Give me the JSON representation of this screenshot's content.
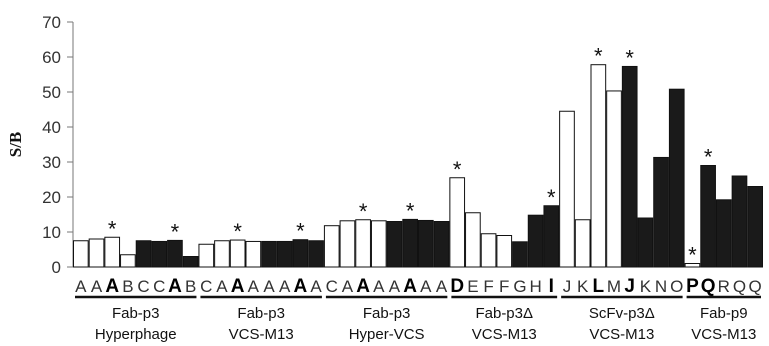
{
  "chart_data": {
    "type": "bar",
    "ylabel": "S/B",
    "ylim": [
      0,
      70
    ],
    "yticks": [
      0,
      10,
      20,
      30,
      40,
      50,
      60,
      70
    ],
    "grid": false,
    "fill_colors": {
      "white": "#ffffff",
      "black": "#1a1a1a"
    },
    "bars": [
      {
        "letter": "A",
        "value": 7.5,
        "fill": "white",
        "bold": false,
        "star": false
      },
      {
        "letter": "A",
        "value": 8.0,
        "fill": "white",
        "bold": false,
        "star": false
      },
      {
        "letter": "A",
        "value": 8.5,
        "fill": "white",
        "bold": true,
        "star": true
      },
      {
        "letter": "B",
        "value": 3.5,
        "fill": "white",
        "bold": false,
        "star": false
      },
      {
        "letter": "C",
        "value": 7.5,
        "fill": "black",
        "bold": false,
        "star": false
      },
      {
        "letter": "C",
        "value": 7.3,
        "fill": "black",
        "bold": false,
        "star": false
      },
      {
        "letter": "A",
        "value": 7.6,
        "fill": "black",
        "bold": true,
        "star": true
      },
      {
        "letter": "B",
        "value": 3.0,
        "fill": "black",
        "bold": false,
        "star": false
      },
      {
        "letter": "C",
        "value": 6.5,
        "fill": "white",
        "bold": false,
        "star": false
      },
      {
        "letter": "A",
        "value": 7.5,
        "fill": "white",
        "bold": false,
        "star": false
      },
      {
        "letter": "A",
        "value": 7.7,
        "fill": "white",
        "bold": true,
        "star": true
      },
      {
        "letter": "A",
        "value": 7.3,
        "fill": "white",
        "bold": false,
        "star": false
      },
      {
        "letter": "A",
        "value": 7.3,
        "fill": "black",
        "bold": false,
        "star": false
      },
      {
        "letter": "A",
        "value": 7.3,
        "fill": "black",
        "bold": false,
        "star": false
      },
      {
        "letter": "A",
        "value": 7.8,
        "fill": "black",
        "bold": true,
        "star": true
      },
      {
        "letter": "A",
        "value": 7.5,
        "fill": "black",
        "bold": false,
        "star": false
      },
      {
        "letter": "C",
        "value": 11.8,
        "fill": "white",
        "bold": false,
        "star": false
      },
      {
        "letter": "A",
        "value": 13.2,
        "fill": "white",
        "bold": false,
        "star": false
      },
      {
        "letter": "A",
        "value": 13.5,
        "fill": "white",
        "bold": true,
        "star": true
      },
      {
        "letter": "A",
        "value": 13.2,
        "fill": "white",
        "bold": false,
        "star": false
      },
      {
        "letter": "A",
        "value": 13.0,
        "fill": "black",
        "bold": false,
        "star": false
      },
      {
        "letter": "A",
        "value": 13.6,
        "fill": "black",
        "bold": true,
        "star": true
      },
      {
        "letter": "A",
        "value": 13.3,
        "fill": "black",
        "bold": false,
        "star": false
      },
      {
        "letter": "A",
        "value": 13.0,
        "fill": "black",
        "bold": false,
        "star": false
      },
      {
        "letter": "D",
        "value": 25.5,
        "fill": "white",
        "bold": true,
        "star": true
      },
      {
        "letter": "E",
        "value": 15.5,
        "fill": "white",
        "bold": false,
        "star": false
      },
      {
        "letter": "F",
        "value": 9.5,
        "fill": "white",
        "bold": false,
        "star": false
      },
      {
        "letter": "F",
        "value": 9.0,
        "fill": "white",
        "bold": false,
        "star": false
      },
      {
        "letter": "G",
        "value": 7.2,
        "fill": "black",
        "bold": false,
        "star": false
      },
      {
        "letter": "H",
        "value": 14.8,
        "fill": "black",
        "bold": false,
        "star": false
      },
      {
        "letter": "I",
        "value": 17.5,
        "fill": "black",
        "bold": true,
        "star": true
      },
      {
        "letter": "J",
        "value": 44.5,
        "fill": "white",
        "bold": false,
        "star": false
      },
      {
        "letter": "K",
        "value": 13.5,
        "fill": "white",
        "bold": false,
        "star": false
      },
      {
        "letter": "L",
        "value": 57.8,
        "fill": "white",
        "bold": true,
        "star": true
      },
      {
        "letter": "M",
        "value": 50.3,
        "fill": "white",
        "bold": false,
        "star": false
      },
      {
        "letter": "J",
        "value": 57.3,
        "fill": "black",
        "bold": true,
        "star": true
      },
      {
        "letter": "K",
        "value": 14.0,
        "fill": "black",
        "bold": false,
        "star": false
      },
      {
        "letter": "N",
        "value": 31.3,
        "fill": "black",
        "bold": false,
        "star": false
      },
      {
        "letter": "O",
        "value": 50.8,
        "fill": "black",
        "bold": false,
        "star": false
      },
      {
        "letter": "P",
        "value": 1.0,
        "fill": "white",
        "bold": true,
        "star": true
      },
      {
        "letter": "Q",
        "value": 29.0,
        "fill": "black",
        "bold": true,
        "star": true
      },
      {
        "letter": "R",
        "value": 19.2,
        "fill": "black",
        "bold": false,
        "star": false
      },
      {
        "letter": "Q",
        "value": 26.0,
        "fill": "black",
        "bold": false,
        "star": false
      },
      {
        "letter": "Q",
        "value": 23.0,
        "fill": "black",
        "bold": false,
        "star": false
      }
    ],
    "groups": [
      {
        "line1": "Fab-p3",
        "line2": "Hyperphage",
        "bar_start": 0,
        "bar_end": 7
      },
      {
        "line1": "Fab-p3",
        "line2": "VCS-M13",
        "bar_start": 8,
        "bar_end": 15
      },
      {
        "line1": "Fab-p3",
        "line2": "Hyper-VCS",
        "bar_start": 16,
        "bar_end": 23
      },
      {
        "line1": "Fab-p3Δ",
        "line2": "VCS-M13",
        "bar_start": 24,
        "bar_end": 30
      },
      {
        "line1": "ScFv-p3Δ",
        "line2": "VCS-M13",
        "bar_start": 31,
        "bar_end": 38
      },
      {
        "line1": "Fab-p9",
        "line2": "VCS-M13",
        "bar_start": 39,
        "bar_end": 43
      }
    ],
    "star_symbol": "*"
  }
}
